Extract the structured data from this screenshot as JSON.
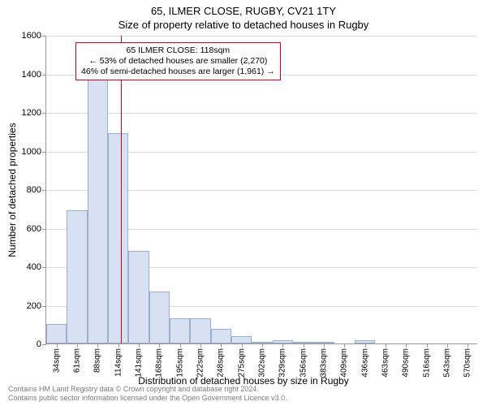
{
  "titles": {
    "line1": "65, ILMER CLOSE, RUGBY, CV21 1TY",
    "line2": "Size of property relative to detached houses in Rugby"
  },
  "chart": {
    "type": "histogram",
    "background_color": "#ffffff",
    "grid_color": "#d9d9d9",
    "axis_color": "#999999",
    "bar_fill": "#d8e1f1",
    "bar_border": "#9aaed1",
    "ylim": [
      0,
      1600
    ],
    "ytick_step": 200,
    "bar_width_ratio": 1.0,
    "reference": {
      "x_value_sqm": 118,
      "x_index_position": 3.15,
      "line_color": "#d9001b",
      "box_border": "#d9001b",
      "box_bg": "#ffffff",
      "lines": [
        "65 ILMER CLOSE: 118sqm",
        "← 53% of detached houses are smaller (2,270)",
        "46% of semi-detached houses are larger (1,961) →"
      ]
    },
    "x_categories_sqm": [
      34,
      61,
      88,
      114,
      141,
      168,
      195,
      222,
      248,
      275,
      302,
      329,
      356,
      383,
      409,
      436,
      463,
      490,
      516,
      543,
      570
    ],
    "values": [
      100,
      690,
      1420,
      1090,
      480,
      270,
      130,
      130,
      75,
      40,
      10,
      15,
      10,
      10,
      0,
      15,
      0,
      0,
      0,
      0,
      0
    ],
    "ylabel": "Number of detached properties",
    "xlabel": "Distribution of detached houses by size in Rugby",
    "title_fontsize": 13,
    "label_fontsize": 12,
    "tick_fontsize": 11,
    "annot_fontsize": 10.5
  },
  "attribution": {
    "line1": "Contains HM Land Registry data © Crown copyright and database right 2024.",
    "line2": "Contains public sector information licensed under the Open Government Licence v3.0."
  }
}
